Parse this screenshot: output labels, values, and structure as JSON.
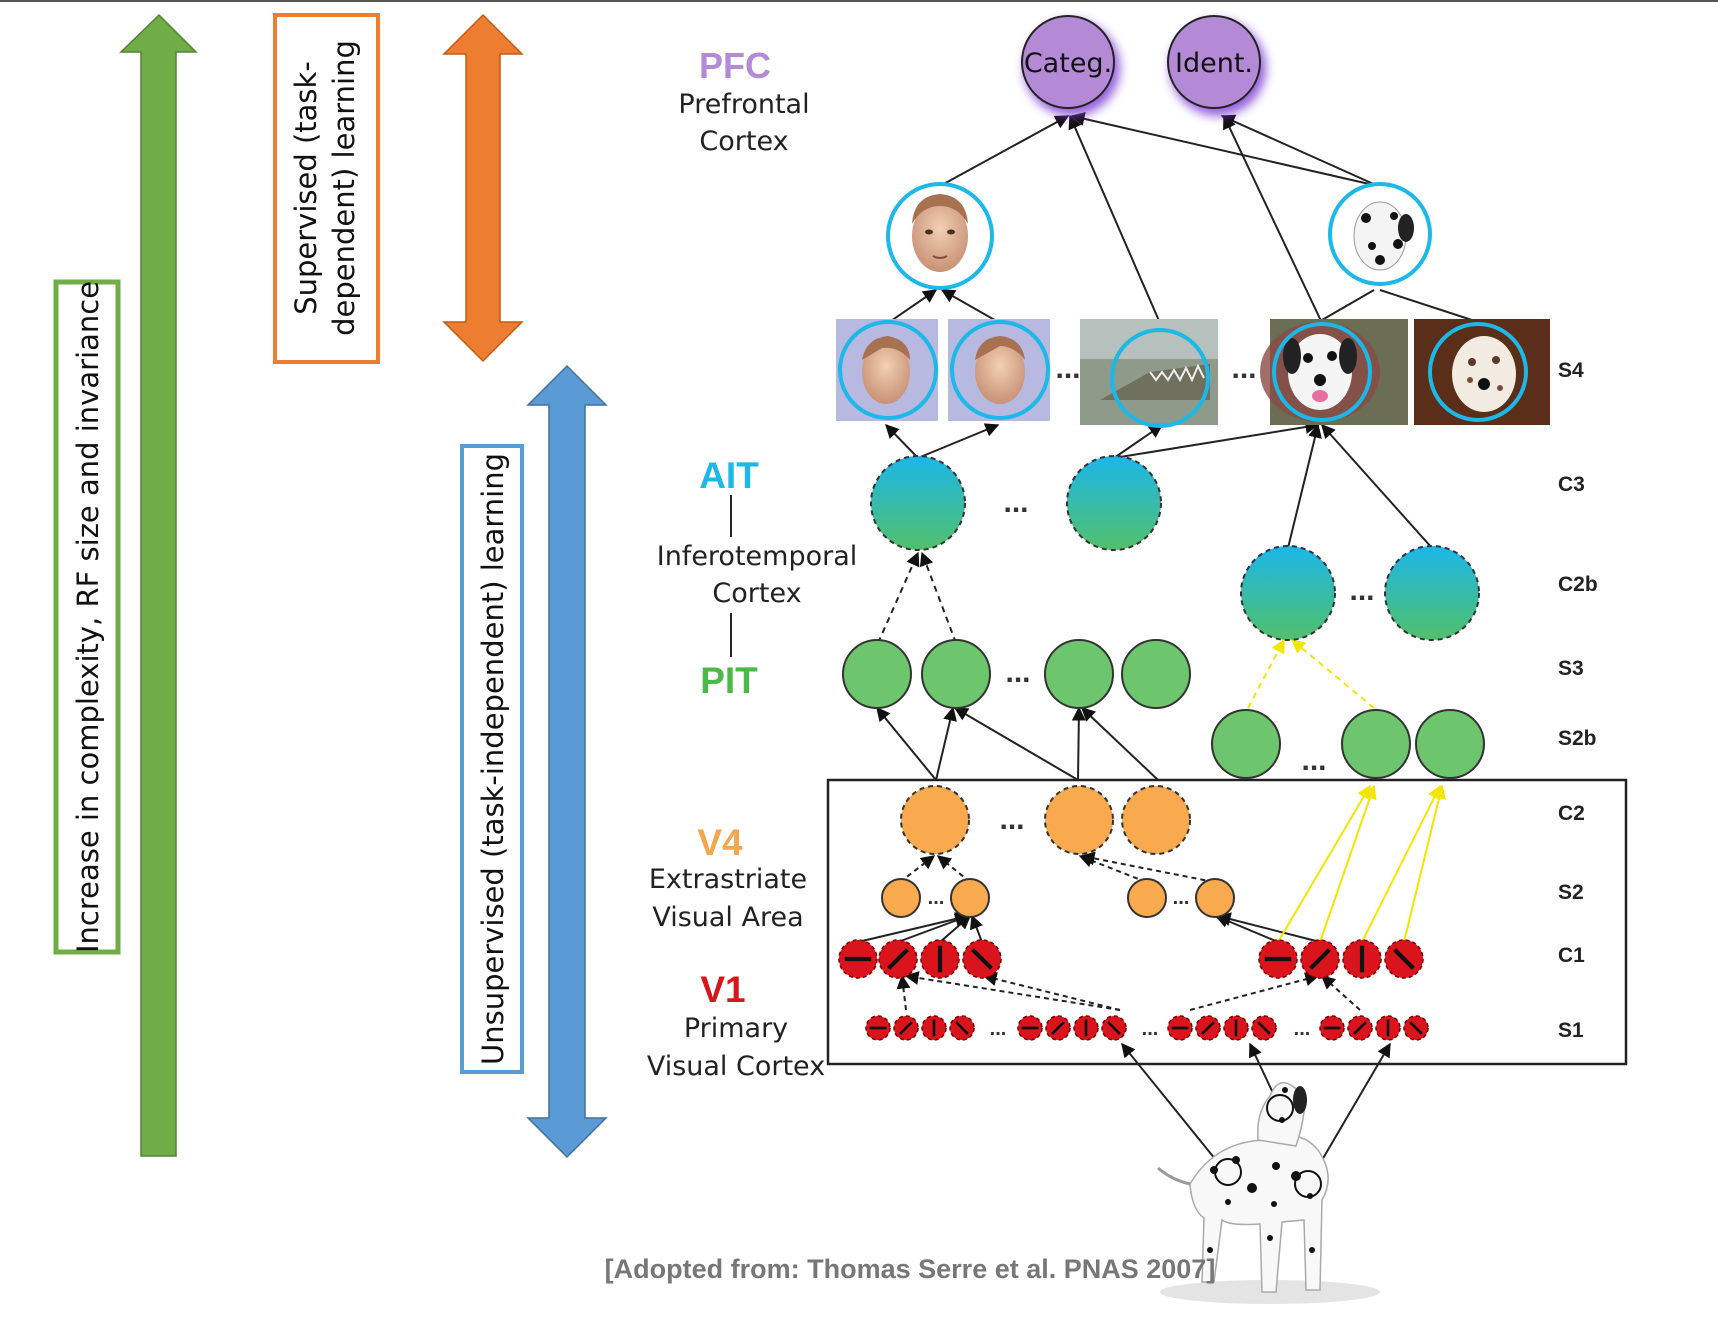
{
  "colors": {
    "pfc": "#b48ad6",
    "ait": "#1bb8e8",
    "pit": "#4cb848",
    "v4": "#f3a64a",
    "v1": "#d9141c",
    "green_arrow": "#70ad47",
    "orange_arrow": "#ed7d31",
    "blue_arrow": "#5b9bd5"
  },
  "side": {
    "complexity": "Increase in complexity, RF size and invariance",
    "supervised_line1": "Supervised (task-",
    "supervised_line2": "dependent) learning",
    "unsupervised": "Unsupervised (task-independent) learning"
  },
  "regions": {
    "pfc": {
      "abbr": "PFC",
      "line1": "Prefrontal",
      "line2": "Cortex"
    },
    "ait": {
      "abbr": "AIT"
    },
    "it": {
      "line1": "Inferotemporal",
      "line2": "Cortex"
    },
    "pit": {
      "abbr": "PIT"
    },
    "v4": {
      "abbr": "V4",
      "line1": "Extrastriate",
      "line2": "Visual Area"
    },
    "v1": {
      "abbr": "V1",
      "line1": "Primary",
      "line2": "Visual Cortex"
    }
  },
  "nodes": {
    "categ": "Categ.",
    "ident": "Ident.",
    "ellipsis": "..."
  },
  "layers": {
    "s4": "S4",
    "c3": "C3",
    "c2b": "C2b",
    "s3": "S3",
    "s2b": "S2b",
    "c2": "C2",
    "s2": "S2",
    "c1": "C1",
    "s1": "S1"
  },
  "citation": "[Adopted from: Thomas Serre et al. PNAS 2007]"
}
